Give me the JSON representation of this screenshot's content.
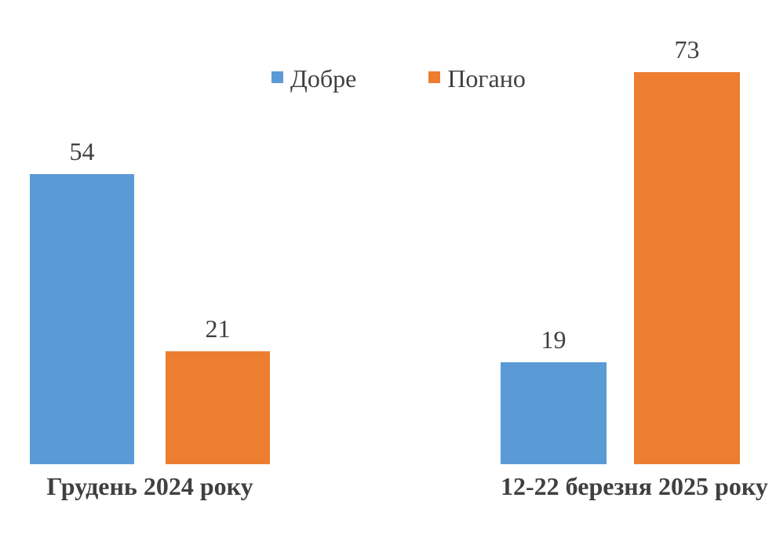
{
  "chart_data": {
    "type": "bar",
    "title": "",
    "categories": [
      "Грудень 2024 року",
      "12-22 березня 2025 року"
    ],
    "series": [
      {
        "name": "Добре",
        "color": "#5B9BD5",
        "values": [
          54,
          19
        ]
      },
      {
        "name": "Погано",
        "color": "#ED7D31",
        "values": [
          21,
          73
        ]
      }
    ],
    "value_labels_visible": true,
    "axes_visible": false,
    "gridlines_visible": false,
    "legend_position": "top",
    "ylim": [
      0,
      73
    ],
    "text_color": "#404040"
  }
}
